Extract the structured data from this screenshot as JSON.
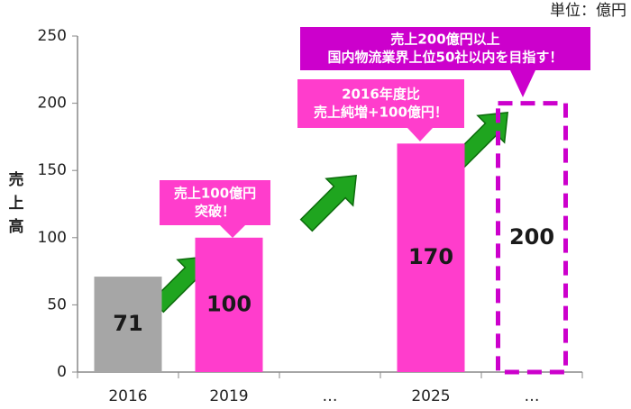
{
  "chart_data": {
    "type": "bar",
    "unit_label": "単位：億円",
    "y_label": "売上高",
    "categories": [
      "2016",
      "2019",
      "…",
      "2025",
      "…"
    ],
    "values": [
      71,
      100,
      null,
      170,
      200
    ],
    "colors": [
      "#a6a6a6",
      "#ff3dcc",
      null,
      "#ff3dcc",
      "#cc00cc"
    ],
    "dashed": [
      false,
      false,
      false,
      false,
      true
    ],
    "ylim": [
      0,
      250
    ],
    "yticks": [
      0,
      50,
      100,
      150,
      200,
      250
    ],
    "annotations": [
      {
        "lines": [
          "売上100億円",
          "突破！"
        ],
        "color": "#ff3dcc"
      },
      {
        "lines": [
          "2016年度比",
          "売上純増+100億円！"
        ],
        "color": "#ff3dcc"
      },
      {
        "lines": [
          "売上200億円以上",
          "国内物流業界上位50社以内を目指す！"
        ],
        "color": "#cc00cc"
      }
    ]
  }
}
